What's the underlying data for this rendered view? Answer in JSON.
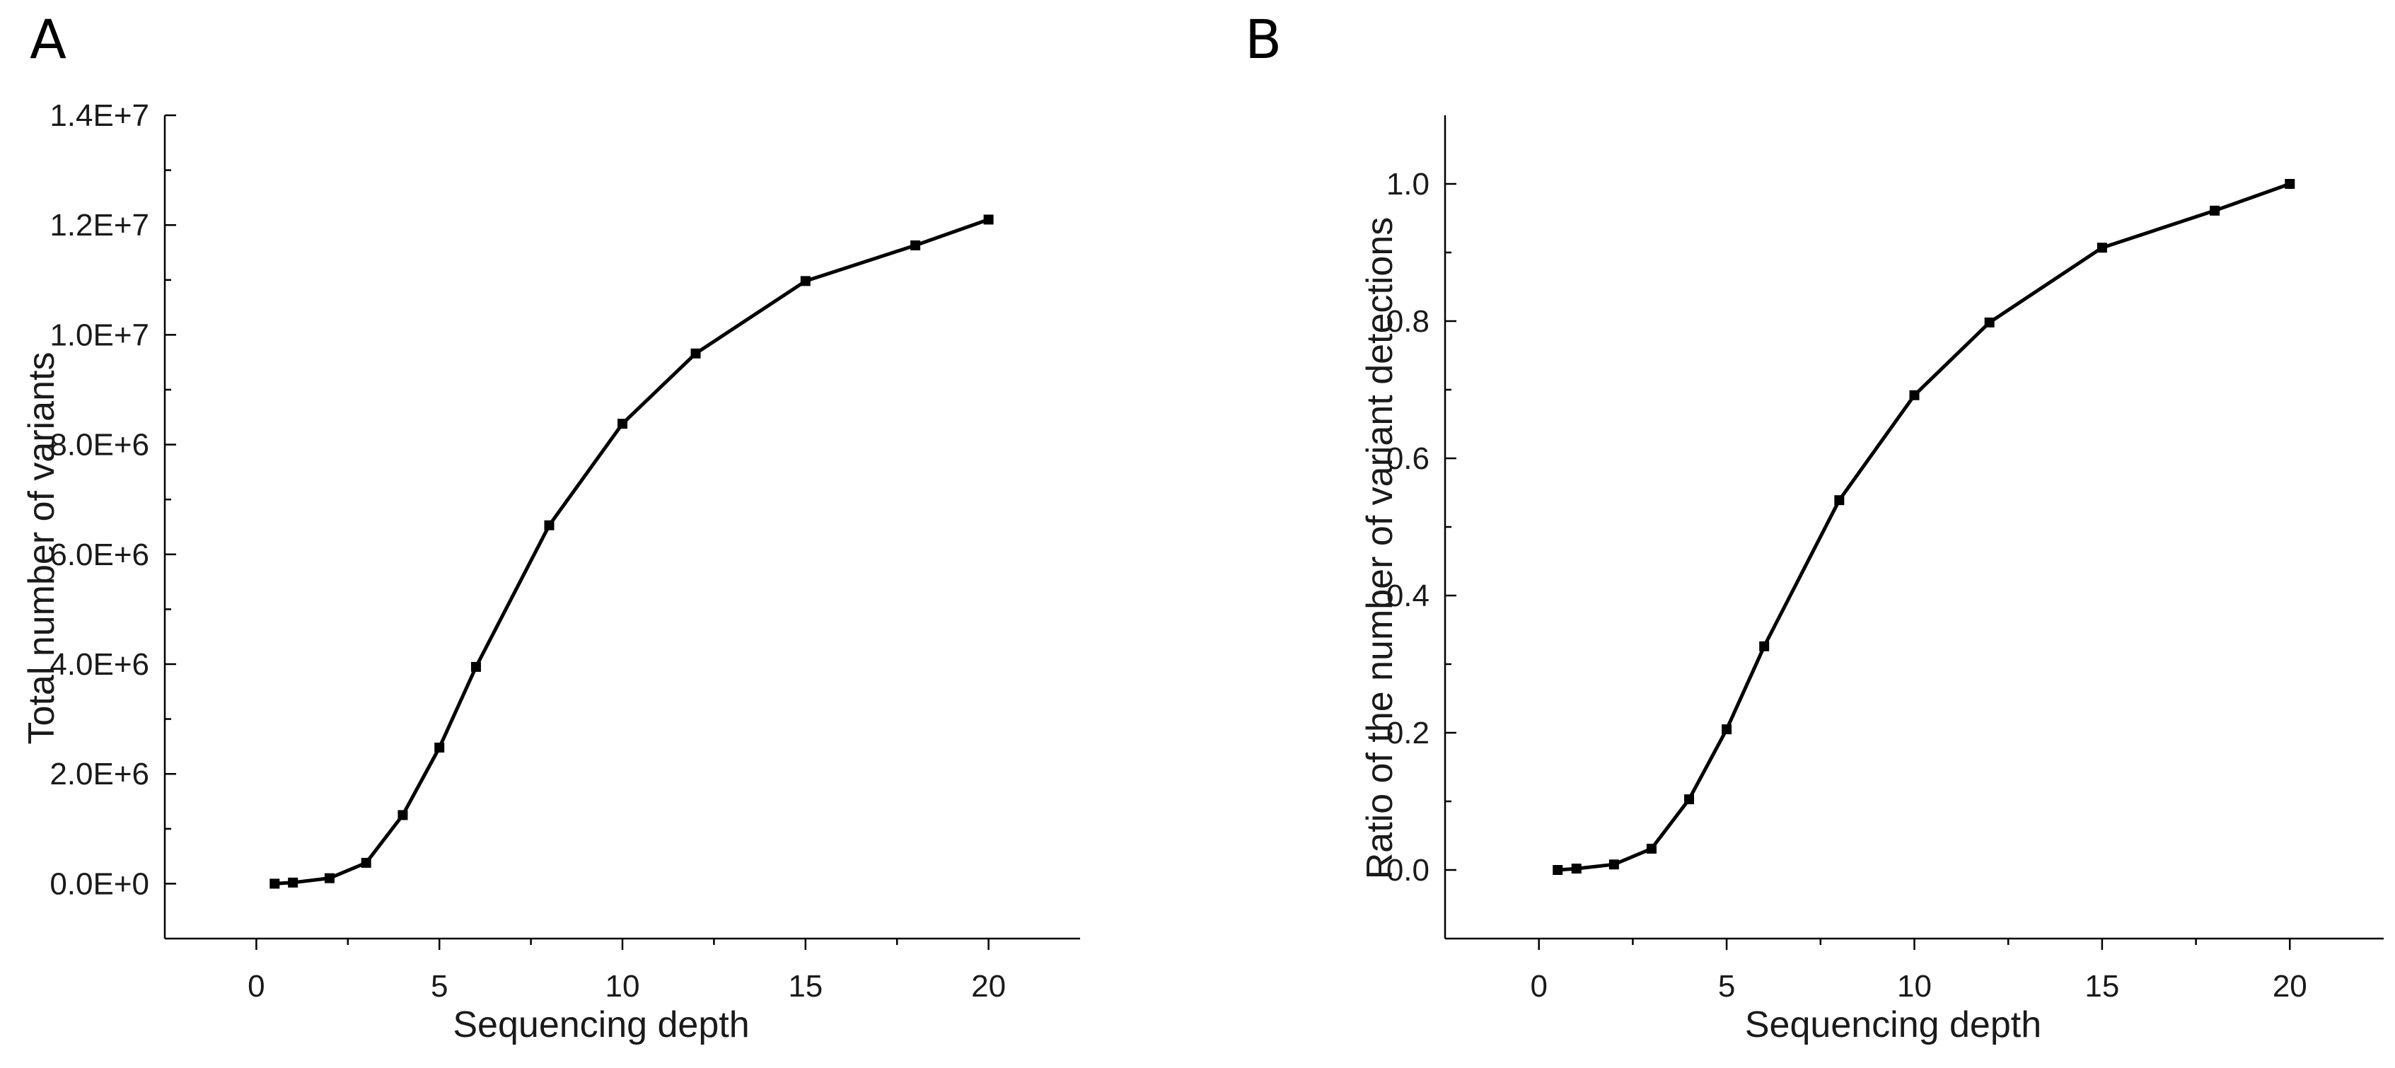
{
  "chart_data": [
    {
      "panel": "A",
      "type": "line",
      "title": "",
      "xlabel": "Sequencing depth",
      "ylabel": "Total number of variants",
      "xlim": [
        -2.5,
        22.5
      ],
      "ylim": [
        -1000000,
        14000000
      ],
      "xticks": [
        0,
        5,
        10,
        15,
        20
      ],
      "xtick_labels": [
        "0",
        "5",
        "10",
        "15",
        "20"
      ],
      "yticks": [
        0,
        2000000,
        4000000,
        6000000,
        8000000,
        10000000,
        12000000,
        14000000
      ],
      "ytick_labels": [
        "0.0E+0",
        "2.0E+6",
        "4.0E+6",
        "6.0E+6",
        "8.0E+6",
        "1.0E+7",
        "1.2E+7",
        "1.4E+7"
      ],
      "x": [
        0.5,
        1,
        2,
        3,
        4,
        5,
        6,
        8,
        10,
        12,
        15,
        18,
        20
      ],
      "y": [
        0,
        20000,
        100000,
        380000,
        1250000,
        2480000,
        3950000,
        6530000,
        8380000,
        9660000,
        10980000,
        11630000,
        12100000
      ]
    },
    {
      "panel": "B",
      "type": "line",
      "title": "",
      "xlabel": "Sequencing depth",
      "ylabel": "Ratio of the number of variant detections",
      "xlim": [
        -2.5,
        22.5
      ],
      "ylim": [
        -0.1,
        1.1
      ],
      "xticks": [
        0,
        5,
        10,
        15,
        20
      ],
      "xtick_labels": [
        "0",
        "5",
        "10",
        "15",
        "20"
      ],
      "yticks": [
        0,
        0.2,
        0.4,
        0.6,
        0.8,
        1.0
      ],
      "ytick_labels": [
        "0.0",
        "0.2",
        "0.4",
        "0.6",
        "0.8",
        "1.0"
      ],
      "x": [
        0.5,
        1,
        2,
        3,
        4,
        5,
        6,
        8,
        10,
        12,
        15,
        18,
        20
      ],
      "y": [
        0.0,
        0.002,
        0.008,
        0.031,
        0.103,
        0.205,
        0.326,
        0.539,
        0.692,
        0.798,
        0.907,
        0.961,
        1.0
      ]
    }
  ]
}
